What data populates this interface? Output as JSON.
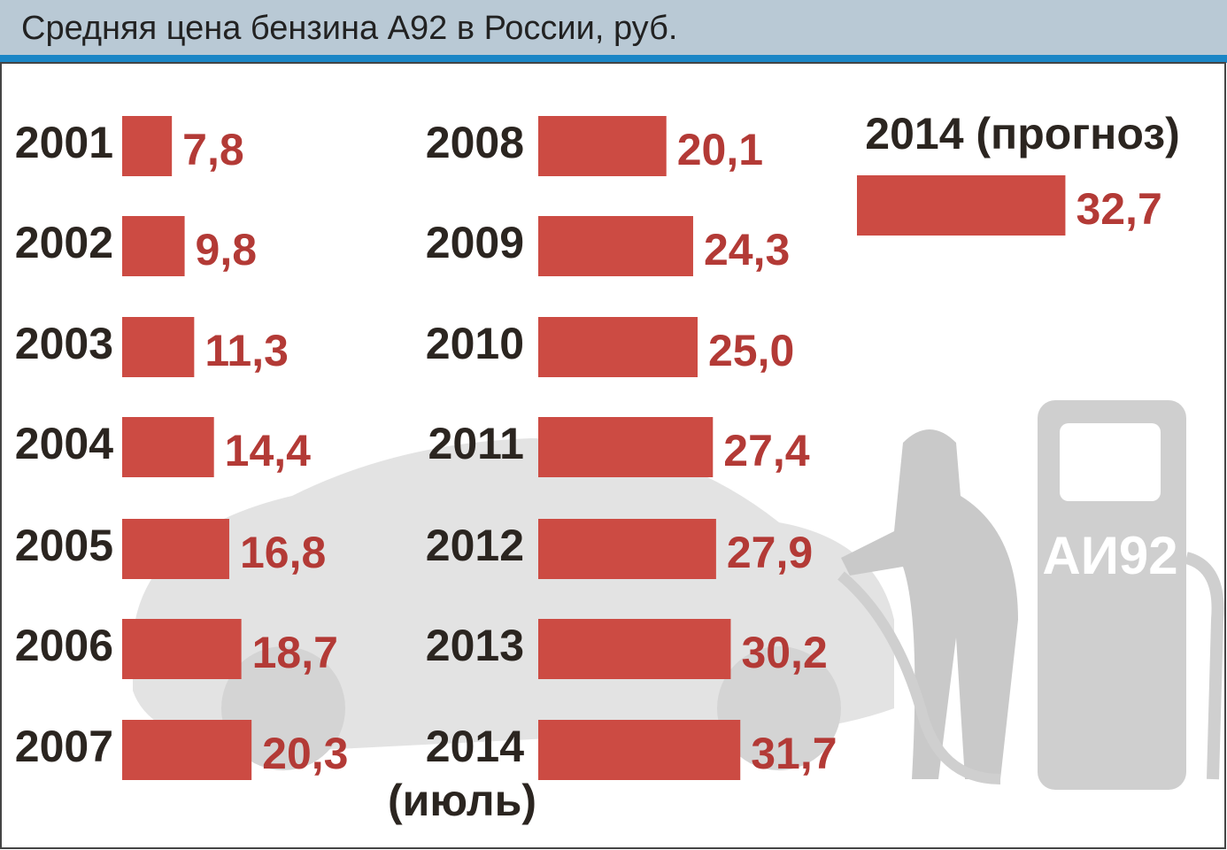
{
  "chart_data": {
    "type": "bar",
    "title": "Средняя цена бензина А92 в России, руб.",
    "categories": [
      "2001",
      "2002",
      "2003",
      "2004",
      "2005",
      "2006",
      "2007",
      "2008",
      "2009",
      "2010",
      "2011",
      "2012",
      "2013",
      "2014",
      "2014 (прогноз)"
    ],
    "values": [
      7.8,
      9.8,
      11.3,
      14.4,
      16.8,
      18.7,
      20.3,
      20.1,
      24.3,
      25.0,
      27.4,
      27.9,
      30.2,
      31.7,
      32.7
    ],
    "value_labels": [
      "7,8",
      "9,8",
      "11,3",
      "14,4",
      "16,8",
      "18,7",
      "20,3",
      "20,1",
      "24,3",
      "25,0",
      "27,4",
      "27,9",
      "30,2",
      "31,7",
      "32,7"
    ],
    "color": "#cc4b43",
    "label_color": "#b33a36",
    "annotation": "(июль)",
    "illustration_text": "АИ92"
  }
}
